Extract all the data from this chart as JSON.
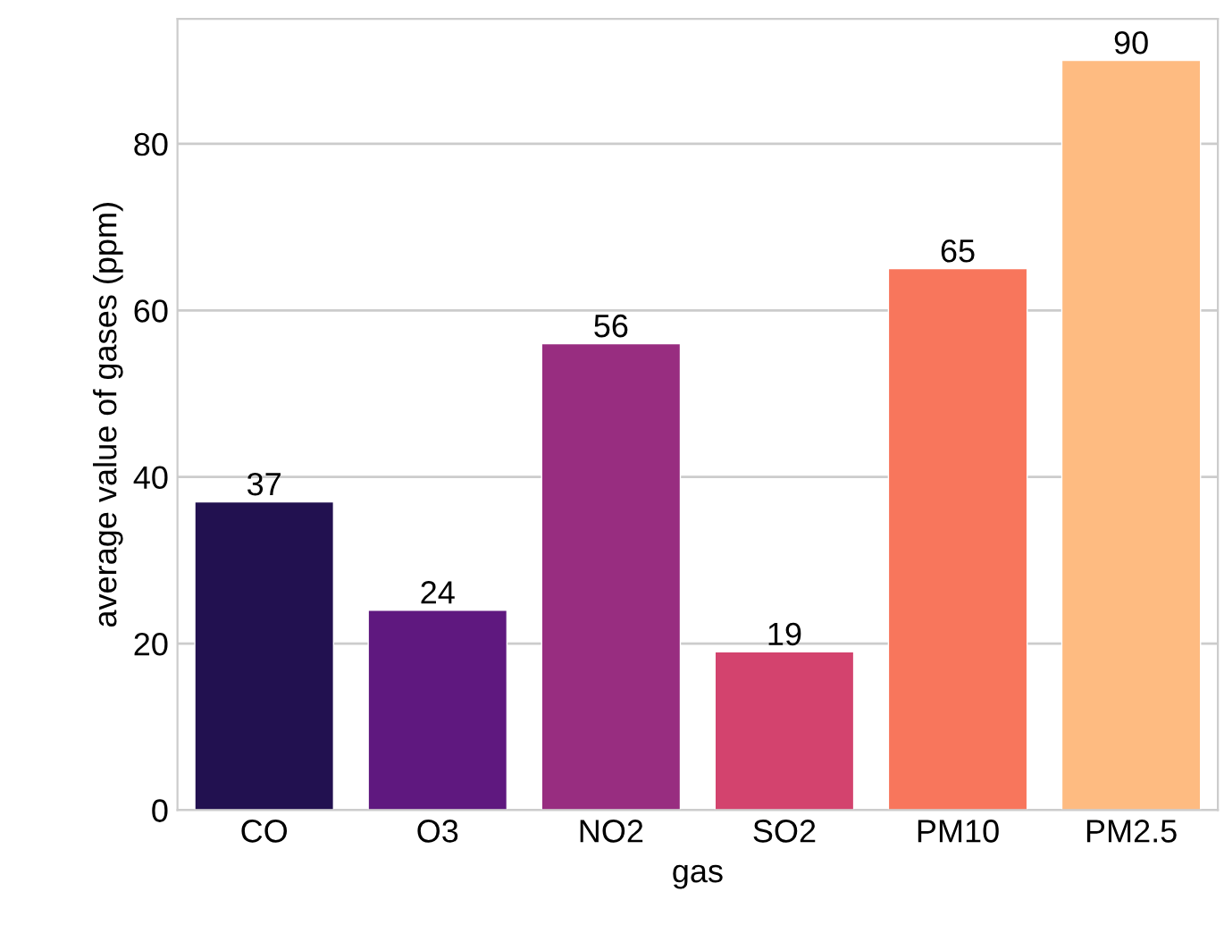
{
  "chart_data": {
    "type": "bar",
    "xlabel": "gas",
    "ylabel": "average value of gases (ppm)",
    "categories": [
      "CO",
      "O3",
      "NO2",
      "SO2",
      "PM10",
      "PM2.5"
    ],
    "values": [
      37,
      24,
      56,
      19,
      65,
      90
    ],
    "colors": [
      "#221150",
      "#5f187f",
      "#982d80",
      "#d3436e",
      "#f8765c",
      "#febb81"
    ],
    "ylim": [
      0,
      95
    ],
    "yticks": [
      0,
      20,
      40,
      60,
      80
    ],
    "grid": "y",
    "data_labels": true
  }
}
